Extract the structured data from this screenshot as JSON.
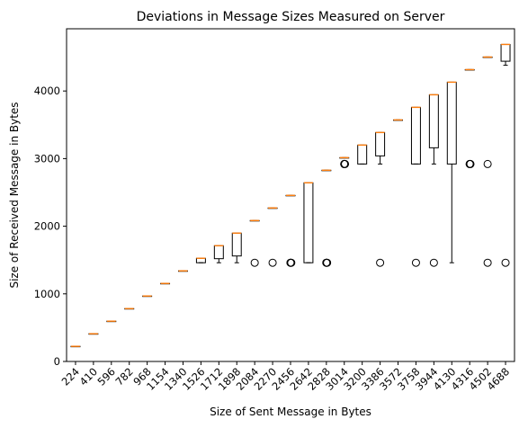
{
  "chart_data": {
    "type": "box",
    "title": "Deviations in Message Sizes Measured on Server",
    "xlabel": "Size of Sent Message in Bytes",
    "ylabel": "Size of Received Message in Bytes",
    "ylim": [
      0,
      4920
    ],
    "yticks": [
      0,
      1000,
      2000,
      3000,
      4000
    ],
    "grid": false,
    "colors": {
      "box": "#000000",
      "median": "#ff7f0e",
      "outlier": "#000000"
    },
    "categories": [
      "224",
      "410",
      "596",
      "782",
      "968",
      "1154",
      "1340",
      "1526",
      "1712",
      "1898",
      "2084",
      "2270",
      "2456",
      "2642",
      "2828",
      "3014",
      "3200",
      "3386",
      "3572",
      "3758",
      "3944",
      "4130",
      "4316",
      "4502",
      "4688"
    ],
    "boxes": [
      {
        "min": 224,
        "q1": 224,
        "median": 224,
        "q3": 224,
        "max": 224,
        "outliers": []
      },
      {
        "min": 410,
        "q1": 410,
        "median": 410,
        "q3": 410,
        "max": 410,
        "outliers": []
      },
      {
        "min": 596,
        "q1": 596,
        "median": 596,
        "q3": 596,
        "max": 596,
        "outliers": []
      },
      {
        "min": 782,
        "q1": 782,
        "median": 782,
        "q3": 782,
        "max": 782,
        "outliers": []
      },
      {
        "min": 968,
        "q1": 968,
        "median": 968,
        "q3": 968,
        "max": 968,
        "outliers": []
      },
      {
        "min": 1154,
        "q1": 1154,
        "median": 1154,
        "q3": 1154,
        "max": 1154,
        "outliers": []
      },
      {
        "min": 1340,
        "q1": 1340,
        "median": 1340,
        "q3": 1340,
        "max": 1340,
        "outliers": []
      },
      {
        "min": 1460,
        "q1": 1460,
        "median": 1526,
        "q3": 1526,
        "max": 1526,
        "outliers": []
      },
      {
        "min": 1460,
        "q1": 1520,
        "median": 1712,
        "q3": 1712,
        "max": 1712,
        "outliers": []
      },
      {
        "min": 1460,
        "q1": 1560,
        "median": 1898,
        "q3": 1898,
        "max": 1898,
        "outliers": []
      },
      {
        "min": 2084,
        "q1": 2084,
        "median": 2084,
        "q3": 2084,
        "max": 2084,
        "outliers": [
          1460
        ]
      },
      {
        "min": 2270,
        "q1": 2270,
        "median": 2270,
        "q3": 2270,
        "max": 2270,
        "outliers": [
          1460
        ]
      },
      {
        "min": 2456,
        "q1": 2456,
        "median": 2456,
        "q3": 2456,
        "max": 2456,
        "outliers": [
          1460,
          1460
        ]
      },
      {
        "min": 1460,
        "q1": 1460,
        "median": 2642,
        "q3": 2642,
        "max": 2642,
        "outliers": []
      },
      {
        "min": 2828,
        "q1": 2828,
        "median": 2828,
        "q3": 2828,
        "max": 2828,
        "outliers": [
          1460,
          1460
        ]
      },
      {
        "min": 3014,
        "q1": 3014,
        "median": 3014,
        "q3": 3014,
        "max": 3014,
        "outliers": [
          2920,
          2920
        ]
      },
      {
        "min": 2920,
        "q1": 2920,
        "median": 3200,
        "q3": 3200,
        "max": 3200,
        "outliers": []
      },
      {
        "min": 2920,
        "q1": 3040,
        "median": 3386,
        "q3": 3386,
        "max": 3386,
        "outliers": [
          1460
        ]
      },
      {
        "min": 3572,
        "q1": 3572,
        "median": 3572,
        "q3": 3572,
        "max": 3572,
        "outliers": []
      },
      {
        "min": 2920,
        "q1": 2920,
        "median": 3758,
        "q3": 3758,
        "max": 3758,
        "outliers": [
          1460
        ]
      },
      {
        "min": 2920,
        "q1": 3160,
        "median": 3944,
        "q3": 3944,
        "max": 3944,
        "outliers": [
          1460
        ]
      },
      {
        "min": 1460,
        "q1": 2920,
        "median": 4130,
        "q3": 4130,
        "max": 4130,
        "outliers": []
      },
      {
        "min": 4316,
        "q1": 4316,
        "median": 4316,
        "q3": 4316,
        "max": 4316,
        "outliers": [
          2920,
          2920
        ]
      },
      {
        "min": 4502,
        "q1": 4502,
        "median": 4502,
        "q3": 4502,
        "max": 4502,
        "outliers": [
          2920,
          1460
        ]
      },
      {
        "min": 4380,
        "q1": 4440,
        "median": 4688,
        "q3": 4688,
        "max": 4688,
        "outliers": [
          1460
        ]
      }
    ]
  }
}
